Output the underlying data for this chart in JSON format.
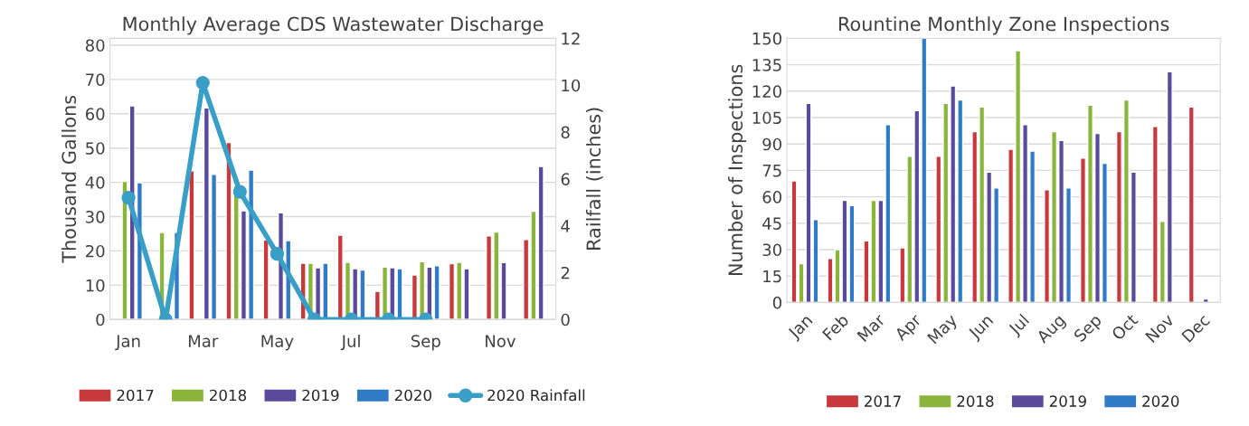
{
  "chart_data": [
    {
      "type": "bar",
      "title": "Monthly Average CDS Wastewater Discharge",
      "ylabel": "Thousand Gallons",
      "y2label": "Railfall (inches)",
      "categories": [
        "Jan",
        null,
        "Mar",
        null,
        "May",
        null,
        "Jul",
        null,
        "Sep",
        null,
        "Nov",
        null
      ],
      "series": [
        {
          "name": "2017",
          "color": "#c8393e",
          "values": [
            null,
            null,
            43.4,
            51.6,
            23.2,
            16.4,
            24.6,
            8.2,
            13,
            16.3,
            24.4,
            23.3
          ]
        },
        {
          "name": "2018",
          "color": "#8ab43c",
          "values": [
            40.3,
            25.4,
            null,
            39,
            null,
            16.4,
            16.7,
            15.3,
            16.9,
            16.7,
            25.5,
            31.6
          ]
        },
        {
          "name": "2019",
          "color": "#5a4a9c",
          "values": [
            62.3,
            null,
            61.7,
            31.7,
            31.1,
            15.1,
            14.8,
            15.1,
            15.3,
            14.8,
            16.6,
            44.6
          ]
        },
        {
          "name": "2020",
          "color": "#2f7bc5",
          "values": [
            39.9,
            25.4,
            42.3,
            43.6,
            23,
            16.4,
            14.4,
            14.8,
            15.7,
            null,
            null,
            null
          ]
        },
        {
          "name": "2020 Rainfall",
          "type": "line",
          "axis": "y2",
          "marker": "circle",
          "color": "#3a9fc6",
          "values": [
            5.2,
            0,
            10.1,
            5.45,
            2.8,
            0,
            0,
            0,
            0,
            null,
            null,
            null
          ]
        }
      ],
      "ylim": [
        0,
        82
      ],
      "yticks": [
        0,
        10,
        20,
        30,
        40,
        50,
        60,
        70,
        80
      ],
      "y2lim": [
        0,
        12
      ],
      "y2ticks": [
        0,
        2,
        4,
        6,
        8,
        10,
        12
      ],
      "grid": "y",
      "legend": "bottom"
    },
    {
      "type": "bar",
      "title": "Rountine Monthly Zone Inspections",
      "ylabel": "Number of Inspections",
      "categories": [
        "Jan",
        "Feb",
        "Mar",
        "Apr",
        "May",
        "Jun",
        "Jul",
        "Aug",
        "Sep",
        "Oct",
        "Nov",
        "Dec"
      ],
      "series": [
        {
          "name": "2017",
          "color": "#c8393e",
          "values": [
            69,
            25,
            35,
            31,
            83,
            97,
            87,
            64,
            82,
            97,
            100,
            111
          ]
        },
        {
          "name": "2018",
          "color": "#8ab43c",
          "values": [
            22,
            30,
            58,
            83,
            113,
            111,
            143,
            97,
            112,
            115,
            46,
            null
          ]
        },
        {
          "name": "2019",
          "color": "#5a4a9c",
          "values": [
            113,
            58,
            58,
            109,
            123,
            74,
            101,
            92,
            96,
            74,
            131,
            2
          ]
        },
        {
          "name": "2020",
          "color": "#2f7bc5",
          "values": [
            47,
            55,
            101,
            150,
            115,
            65,
            86,
            65,
            79,
            null,
            null,
            null
          ]
        }
      ],
      "ylim": [
        0,
        150
      ],
      "yticks": [
        0,
        15,
        30,
        45,
        60,
        75,
        90,
        105,
        120,
        135,
        150
      ],
      "grid": "y",
      "legend": "bottom"
    }
  ]
}
